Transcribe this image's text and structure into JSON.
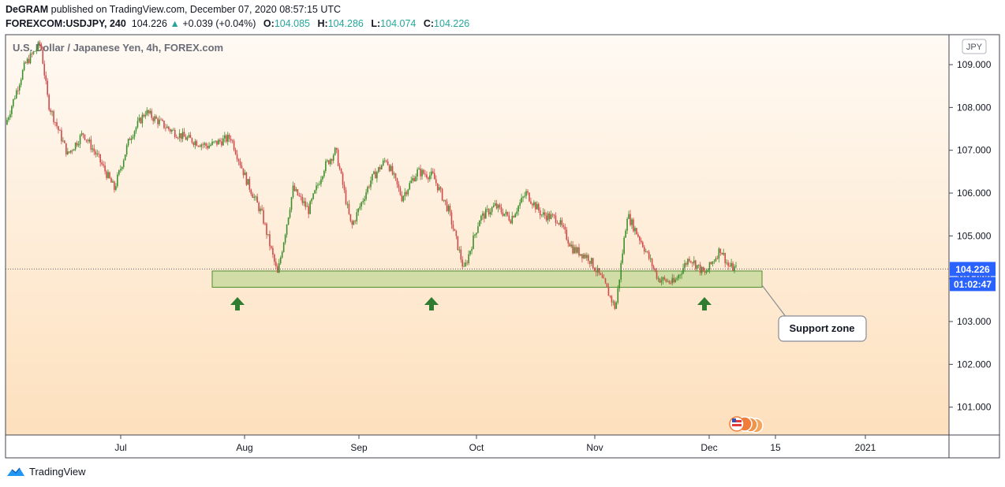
{
  "header": {
    "publisher": "DeGRAM",
    "published_text": "published on TradingView.com, December 07, 2020 08:57:15 UTC",
    "symbol": "FOREXCOM:USDJPY, 240",
    "last": "104.226",
    "change_arrow": "▲",
    "change": "+0.039 (+0.04%)",
    "o_label": "O:",
    "o_value": "104.085",
    "h_label": "H:",
    "h_value": "104.286",
    "l_label": "L:",
    "l_value": "104.074",
    "c_label": "C:",
    "c_value": "104.226"
  },
  "chart_data": {
    "type": "candlestick",
    "title": "U.S. Dollar / Japanese Yen, 4h, FOREX.com",
    "currency_label": "JPY",
    "ylim": [
      100.35,
      109.7
    ],
    "y_ticks": [
      "101.000",
      "102.000",
      "103.000",
      "104.000",
      "105.000",
      "106.000",
      "107.000",
      "108.000",
      "109.000"
    ],
    "y_tick_values": [
      101,
      102,
      103,
      104,
      105,
      106,
      107,
      108,
      109
    ],
    "x_ticks": [
      "Jul",
      "Aug",
      "Sep",
      "Oct",
      "Nov",
      "Dec",
      "15",
      "2021"
    ],
    "price_path": [
      [
        0,
        107.6
      ],
      [
        2.5,
        109.0
      ],
      [
        4.5,
        109.5
      ],
      [
        5.5,
        108.1
      ],
      [
        8,
        106.9
      ],
      [
        10,
        107.4
      ],
      [
        12,
        106.8
      ],
      [
        14,
        106.1
      ],
      [
        16,
        107.3
      ],
      [
        18,
        107.9
      ],
      [
        21,
        107.5
      ],
      [
        23,
        107.3
      ],
      [
        26,
        107.1
      ],
      [
        29,
        107.3
      ],
      [
        31,
        106.3
      ],
      [
        33,
        105.5
      ],
      [
        35,
        104.1
      ],
      [
        37,
        106.1
      ],
      [
        39,
        105.6
      ],
      [
        41,
        106.6
      ],
      [
        42.5,
        107.0
      ],
      [
        44.5,
        105.2
      ],
      [
        47,
        106.3
      ],
      [
        49,
        106.8
      ],
      [
        51,
        105.9
      ],
      [
        53,
        106.5
      ],
      [
        55,
        106.4
      ],
      [
        57,
        105.6
      ],
      [
        59,
        104.2
      ],
      [
        61,
        105.4
      ],
      [
        63,
        105.7
      ],
      [
        65,
        105.4
      ],
      [
        67,
        106.0
      ],
      [
        69,
        105.5
      ],
      [
        71,
        105.4
      ],
      [
        73,
        104.7
      ],
      [
        75,
        104.5
      ],
      [
        77,
        103.9
      ],
      [
        78.5,
        103.3
      ],
      [
        80,
        105.5
      ],
      [
        82,
        104.8
      ],
      [
        84,
        104.0
      ],
      [
        86,
        103.9
      ],
      [
        88,
        104.5
      ],
      [
        90,
        104.1
      ],
      [
        92,
        104.7
      ],
      [
        93,
        104.3
      ],
      [
        94,
        104.226
      ]
    ],
    "last_price": 104.226,
    "last_price_label": "104.226",
    "countdown_label": "01:02:47",
    "annotations": {
      "support_zone": {
        "from": 103.8,
        "to": 104.18
      },
      "support_zone_label": "Support zone",
      "support_arrows_count": 3
    },
    "grid": false,
    "legend": "none"
  },
  "colors": {
    "up": "#26a69a",
    "down": "#ef5350",
    "candle_up": "#3e8f2c",
    "candle_down": "#d04a4a",
    "zone_fill": "#b9d58d",
    "zone_stroke": "#4e8c2f",
    "arrow": "#2e7d32",
    "price_badge": "#2962ff",
    "bg_top": "#fffaf4",
    "bg_bottom": "#fde0bd"
  },
  "footer": {
    "brand": "TradingView"
  }
}
